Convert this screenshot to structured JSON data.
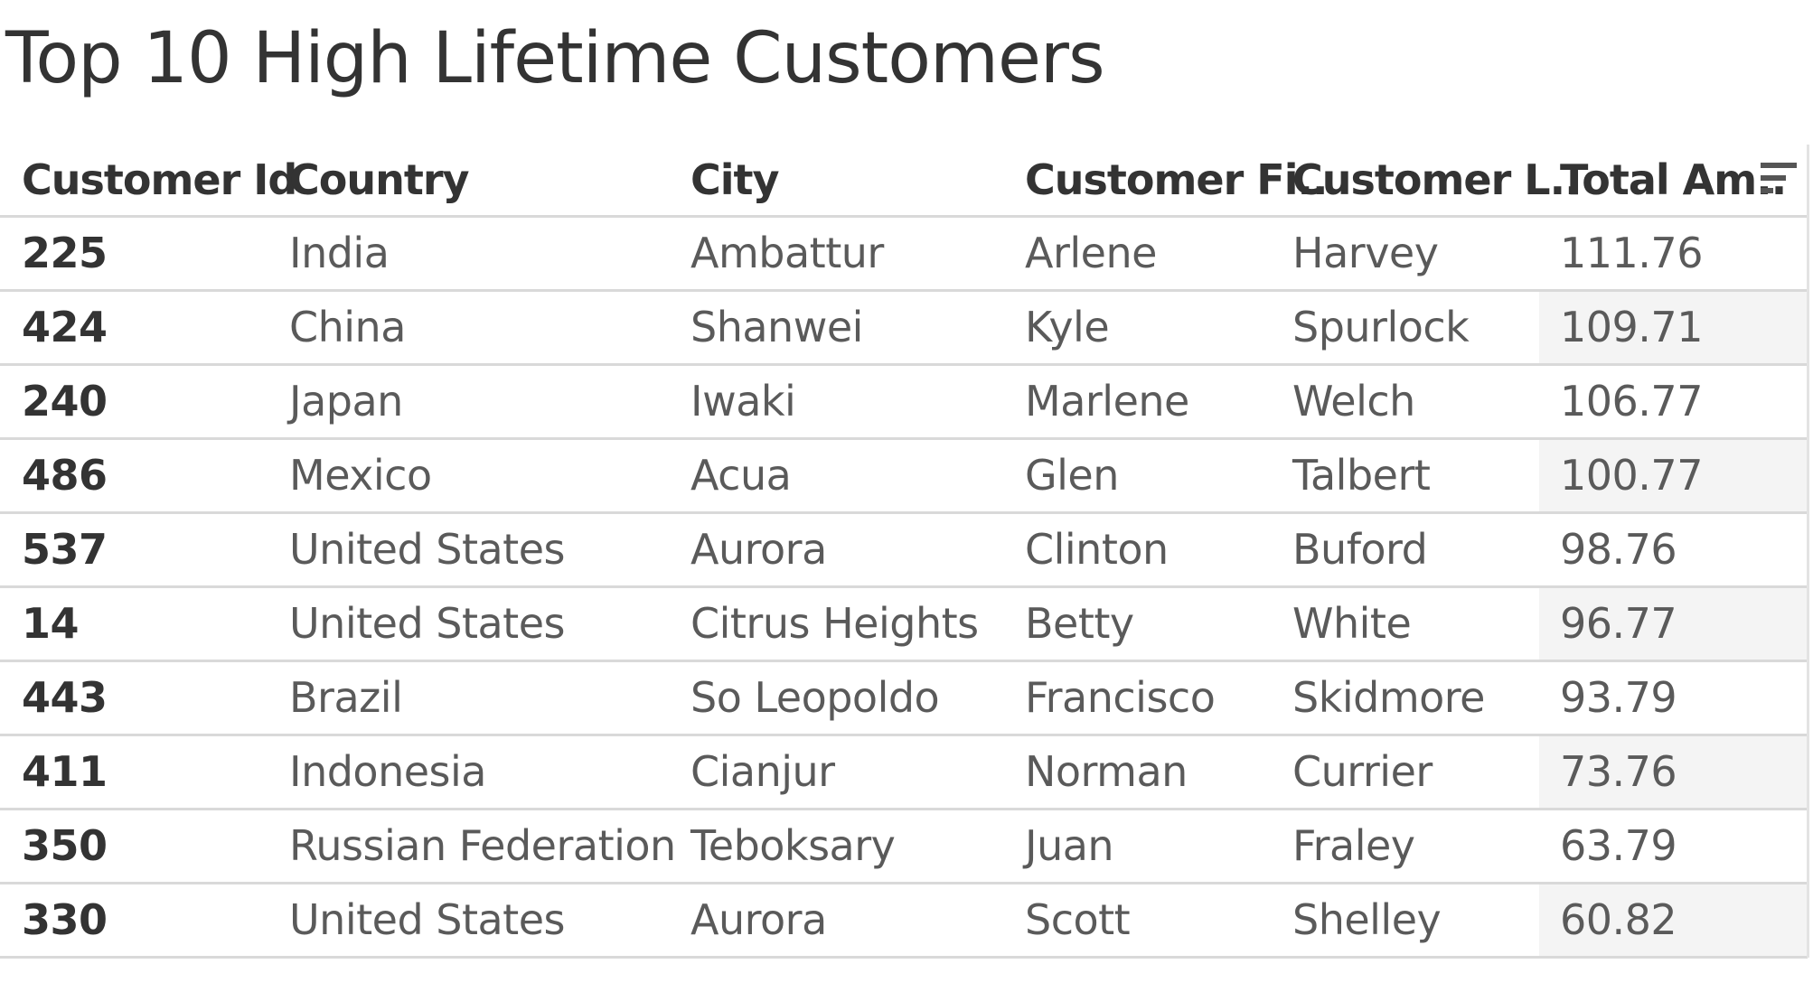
{
  "title": "Top 10 High Lifetime Customers",
  "columns": [
    "Customer Id",
    "Country",
    "City",
    "Customer Fi..",
    "Customer L..",
    "Total Am.."
  ],
  "sort_icon": "sort-descending-icon",
  "rows": [
    {
      "id": "225",
      "country": "India",
      "city": "Ambattur",
      "first": "Arlene",
      "last": "Harvey",
      "total": "111.76"
    },
    {
      "id": "424",
      "country": "China",
      "city": "Shanwei",
      "first": "Kyle",
      "last": "Spurlock",
      "total": "109.71"
    },
    {
      "id": "240",
      "country": "Japan",
      "city": "Iwaki",
      "first": "Marlene",
      "last": "Welch",
      "total": "106.77"
    },
    {
      "id": "486",
      "country": "Mexico",
      "city": "Acua",
      "first": "Glen",
      "last": "Talbert",
      "total": "100.77"
    },
    {
      "id": "537",
      "country": "United States",
      "city": "Aurora",
      "first": "Clinton",
      "last": "Buford",
      "total": "98.76"
    },
    {
      "id": "14",
      "country": "United States",
      "city": "Citrus Heights",
      "first": "Betty",
      "last": "White",
      "total": "96.77"
    },
    {
      "id": "443",
      "country": "Brazil",
      "city": "So Leopoldo",
      "first": "Francisco",
      "last": "Skidmore",
      "total": "93.79"
    },
    {
      "id": "411",
      "country": "Indonesia",
      "city": "Cianjur",
      "first": "Norman",
      "last": "Currier",
      "total": "73.76"
    },
    {
      "id": "350",
      "country": "Russian Federation",
      "city": "Teboksary",
      "first": "Juan",
      "last": "Fraley",
      "total": "63.79"
    },
    {
      "id": "330",
      "country": "United States",
      "city": "Aurora",
      "first": "Scott",
      "last": "Shelley",
      "total": "60.82"
    }
  ]
}
